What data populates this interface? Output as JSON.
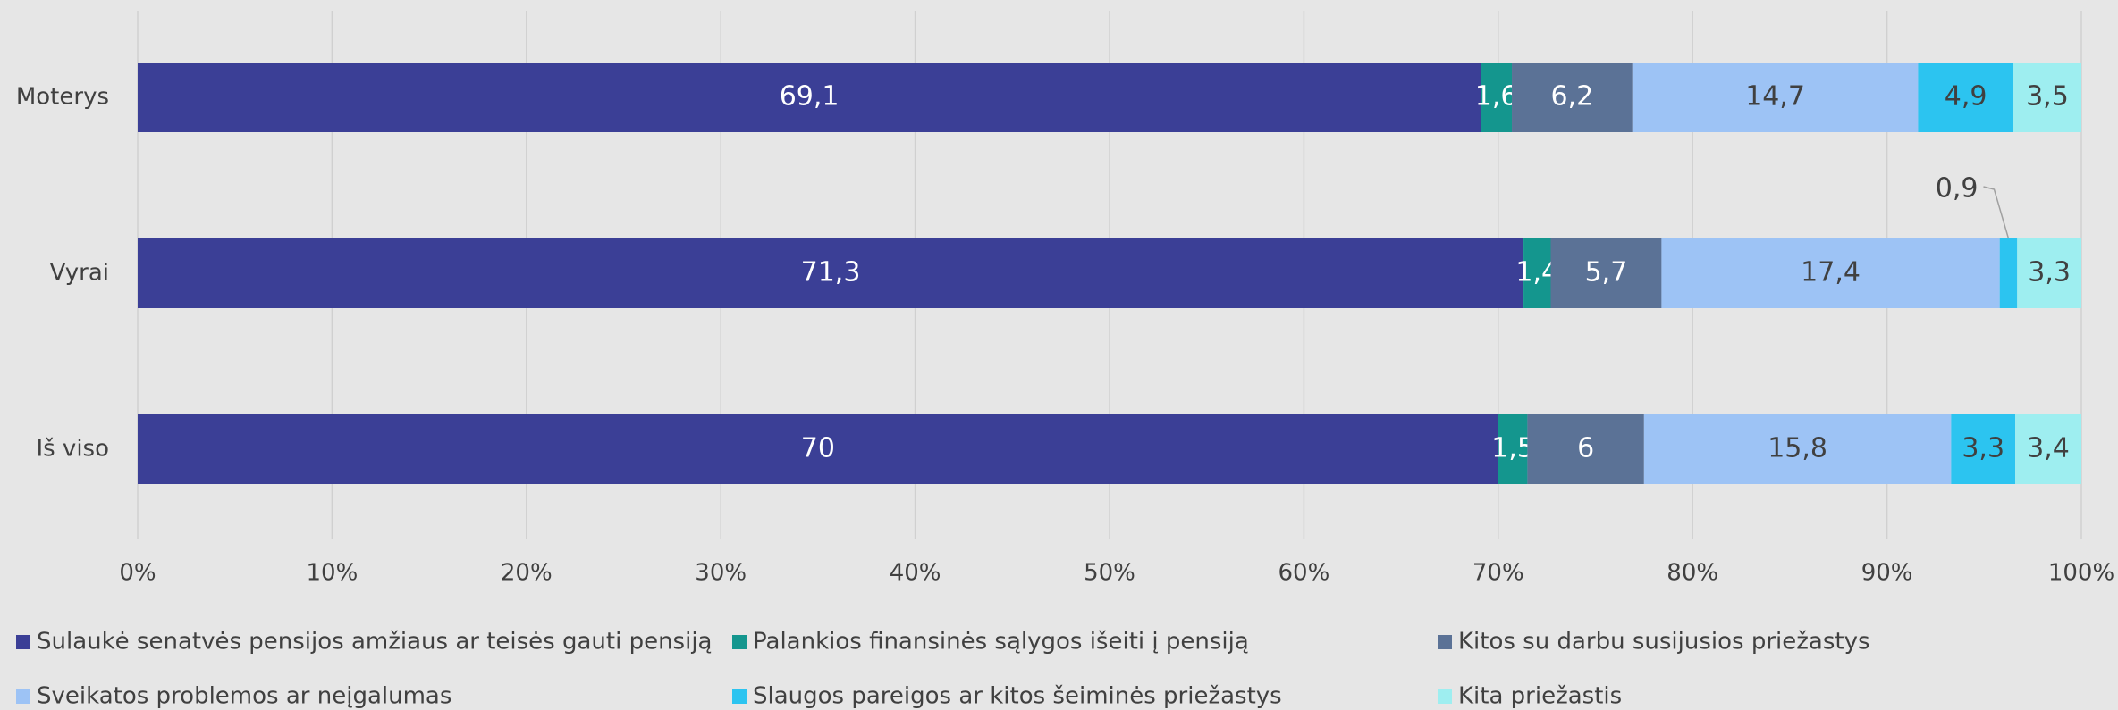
{
  "chart_data": {
    "type": "stacked_barh",
    "categories": [
      "Moterys",
      "Vyrai",
      "Iš viso"
    ],
    "series": [
      {
        "name": "Sulaukė senatvės pensijos amžiaus ar teisės gauti pensiją",
        "color": "#3b3f96",
        "label_color": "#ffffff",
        "values": [
          69.1,
          71.3,
          70
        ],
        "value_labels": [
          "69,1",
          "71,3",
          "70"
        ]
      },
      {
        "name": "Palankios finansinės sąlygos išeiti į pensiją",
        "color": "#14968e",
        "label_color": "#ffffff",
        "values": [
          1.6,
          1.4,
          1.5
        ],
        "value_labels": [
          "1,6",
          "1,4",
          "1,5"
        ]
      },
      {
        "name": "Kitos su darbu susijusios priežastys",
        "color": "#5b7296",
        "label_color": "#ffffff",
        "values": [
          6.2,
          5.7,
          6
        ],
        "value_labels": [
          "6,2",
          "5,7",
          "6"
        ]
      },
      {
        "name": "Sveikatos problemos ar neįgalumas",
        "color": "#9dc3f5",
        "label_color": "#404040",
        "values": [
          14.7,
          17.4,
          15.8
        ],
        "value_labels": [
          "14,7",
          "17,4",
          "15,8"
        ]
      },
      {
        "name": "Slaugos pareigos ar kitos šeiminės priežastys",
        "color": "#2cc4f0",
        "label_color": "#404040",
        "values": [
          4.9,
          0.9,
          3.3
        ],
        "value_labels": [
          "4,9",
          "0,9",
          "3,3"
        ]
      },
      {
        "name": "Kita priežastis",
        "color": "#9eeef0",
        "label_color": "#404040",
        "values": [
          3.5,
          3.3,
          3.4
        ],
        "value_labels": [
          "3,5",
          "3,3",
          "3,4"
        ]
      }
    ],
    "xlim": [
      0,
      100
    ],
    "xticks": [
      {
        "value": 0,
        "label": "0%"
      },
      {
        "value": 10,
        "label": "10%"
      },
      {
        "value": 20,
        "label": "20%"
      },
      {
        "value": 30,
        "label": "30%"
      },
      {
        "value": 40,
        "label": "40%"
      },
      {
        "value": 50,
        "label": "50%"
      },
      {
        "value": 60,
        "label": "60%"
      },
      {
        "value": 70,
        "label": "70%"
      },
      {
        "value": 80,
        "label": "80%"
      },
      {
        "value": 90,
        "label": "90%"
      },
      {
        "value": 100,
        "label": "100%"
      }
    ],
    "grid": true
  }
}
